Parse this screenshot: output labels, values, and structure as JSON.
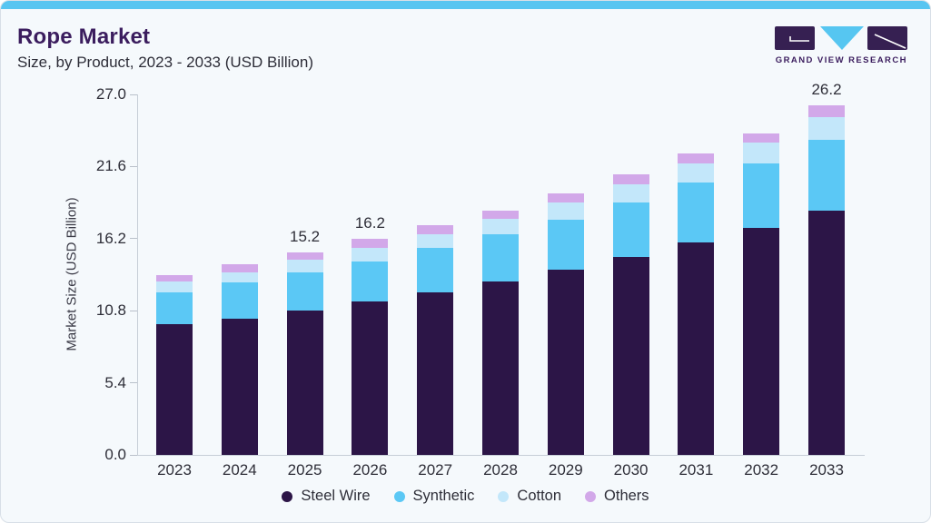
{
  "header": {
    "title": "Rope Market",
    "subtitle": "Size, by Product, 2023 - 2033 (USD Billion)"
  },
  "brand": {
    "name": "GRAND VIEW RESEARCH",
    "logo_purple": "#362052",
    "logo_blue": "#56c6f1"
  },
  "colors": {
    "card_bg": "#f5f9fc",
    "top_strip": "#58c5f1",
    "title_purple": "#3b1d5e",
    "text_dark": "#2e2e38",
    "axis_line": "#c7ced7"
  },
  "chart_data": {
    "type": "bar",
    "stacked": true,
    "title": "Rope Market",
    "subtitle": "Size, by Product, 2023 - 2033 (USD Billion)",
    "xlabel": "",
    "ylabel": "Market Size (USD Billion)",
    "ylim": [
      0,
      27
    ],
    "yticks": [
      0.0,
      5.4,
      10.8,
      16.2,
      21.6,
      27.0
    ],
    "grid": false,
    "legend_position": "bottom",
    "categories": [
      "2023",
      "2024",
      "2025",
      "2026",
      "2027",
      "2028",
      "2029",
      "2030",
      "2031",
      "2032",
      "2033"
    ],
    "series": [
      {
        "name": "Steel Wire",
        "color": "#2c1547",
        "values": [
          9.8,
          10.2,
          10.8,
          11.5,
          12.2,
          13.0,
          13.9,
          14.8,
          15.9,
          17.0,
          18.3
        ]
      },
      {
        "name": "Synthetic",
        "color": "#5bc8f5",
        "values": [
          2.4,
          2.7,
          2.9,
          3.0,
          3.3,
          3.5,
          3.7,
          4.1,
          4.5,
          4.8,
          5.3
        ]
      },
      {
        "name": "Cotton",
        "color": "#c3e7fa",
        "values": [
          0.8,
          0.8,
          0.9,
          1.0,
          1.0,
          1.2,
          1.3,
          1.4,
          1.4,
          1.6,
          1.7
        ]
      },
      {
        "name": "Others",
        "color": "#d2a8e9",
        "values": [
          0.5,
          0.6,
          0.6,
          0.7,
          0.7,
          0.6,
          0.7,
          0.7,
          0.8,
          0.7,
          0.9
        ]
      }
    ],
    "totals": [
      13.5,
      14.3,
      15.2,
      16.2,
      17.2,
      18.3,
      19.6,
      21.0,
      22.6,
      24.1,
      26.2
    ],
    "bar_labels": {
      "2025": "15.2",
      "2026": "16.2",
      "2033": "26.2"
    }
  }
}
